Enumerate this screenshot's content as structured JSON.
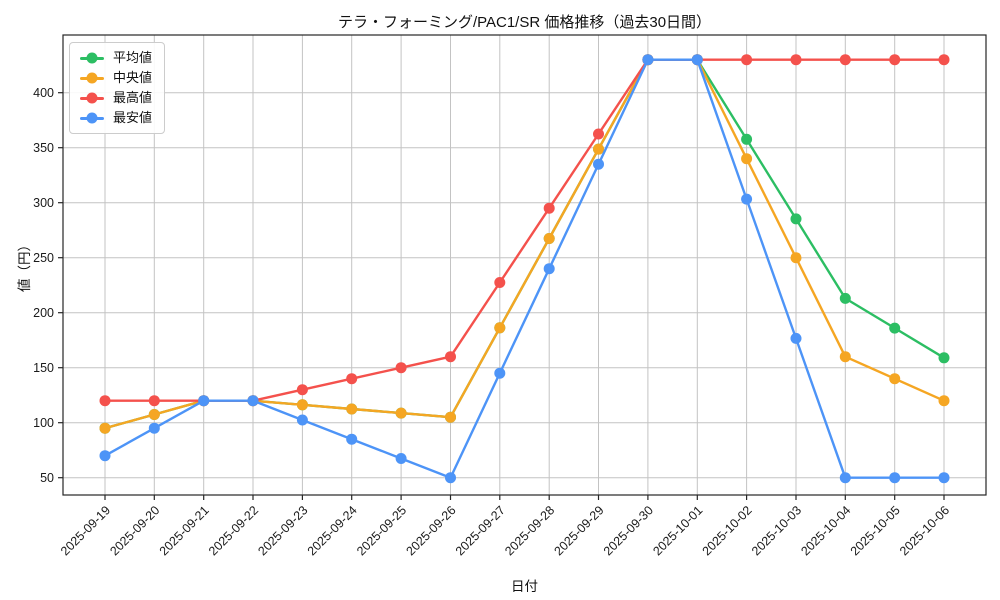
{
  "title": "テラ・フォーミング/PAC1/SR 価格推移（過去30日間）",
  "chart_data": {
    "type": "line",
    "title": "テラ・フォーミング/PAC1/SR 価格推移（過去30日間）",
    "xlabel": "日付",
    "ylabel": "値（円）",
    "x": [
      "2025-09-19",
      "2025-09-20",
      "2025-09-21",
      "2025-09-22",
      "2025-09-23",
      "2025-09-24",
      "2025-09-25",
      "2025-09-26",
      "2025-09-27",
      "2025-09-28",
      "2025-09-29",
      "2025-09-30",
      "2025-10-01",
      "2025-10-02",
      "2025-10-03",
      "2025-10-04",
      "2025-10-05",
      "2025-10-06"
    ],
    "series": [
      {
        "name": "平均値",
        "color": "#2cbe63",
        "values": [
          95,
          107.5,
          120,
          120,
          116.3,
          112.5,
          108.8,
          105,
          186.3,
          267.5,
          348.8,
          430,
          430,
          357.7,
          285.3,
          213,
          186,
          159
        ]
      },
      {
        "name": "中央値",
        "color": "#f5a623",
        "values": [
          95,
          107.5,
          120,
          120,
          116.3,
          112.5,
          108.8,
          105,
          186.3,
          267.5,
          348.8,
          430,
          430,
          340,
          250,
          160,
          140,
          120
        ]
      },
      {
        "name": "最高値",
        "color": "#f4514c",
        "values": [
          120,
          120,
          120,
          120,
          130,
          140,
          150,
          160,
          227.5,
          295,
          362.5,
          430,
          430,
          430,
          430,
          430,
          430,
          430
        ]
      },
      {
        "name": "最安値",
        "color": "#4d94f7",
        "values": [
          70,
          95,
          120,
          120,
          102.5,
          85,
          67.5,
          50,
          145,
          240,
          335,
          430,
          430,
          303.3,
          176.7,
          50,
          50,
          50
        ]
      }
    ],
    "yticks": [
      50,
      100,
      150,
      200,
      250,
      300,
      350,
      400
    ],
    "ylim": [
      34.3,
      452.5
    ],
    "grid": true,
    "grid_color": "#c3c3c3",
    "spine_color": "#262626",
    "legend_position": "upper left",
    "background": "#ffffff"
  }
}
